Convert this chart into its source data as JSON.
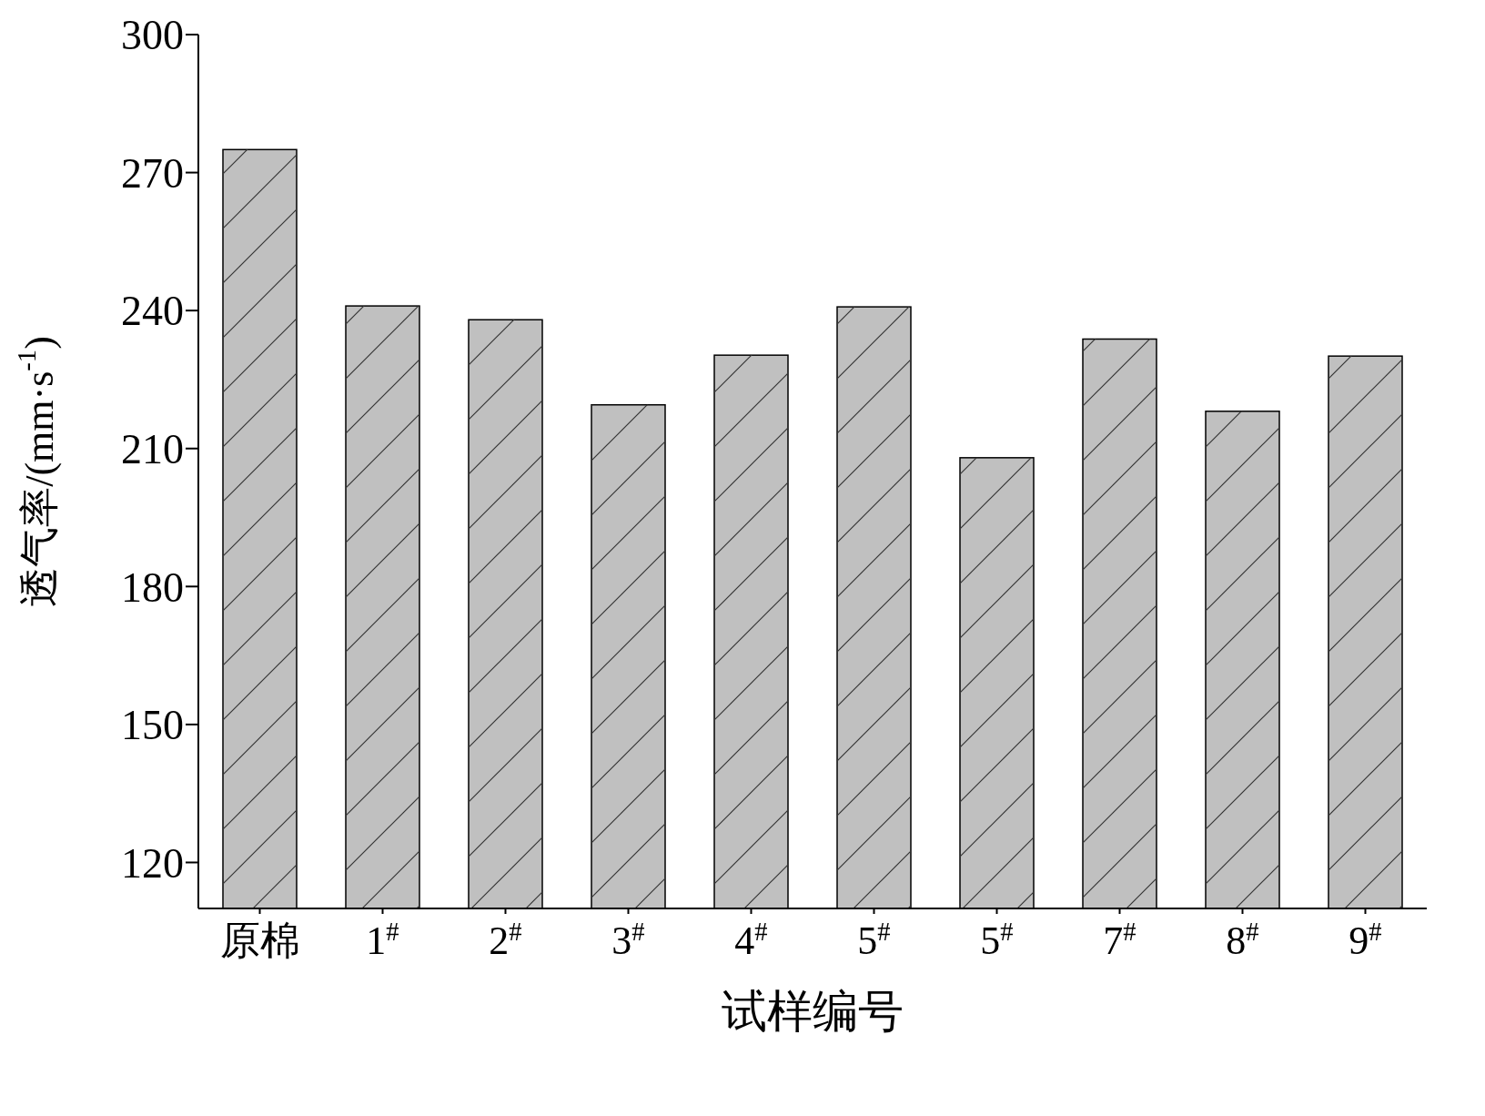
{
  "chart_data": {
    "type": "bar",
    "xlabel": "试样编号",
    "ylabel": "透气率/(mm·s$^{-1}$)",
    "categories": [
      "原棉",
      "1$^{#}$",
      "2$^{#}$",
      "3$^{#}$",
      "4$^{#}$",
      "5$^{#}$",
      "5$^{#}$",
      "7$^{#}$",
      "8$^{#}$",
      "9$^{#}$"
    ],
    "values": [
      275,
      241,
      238,
      219.5,
      230.3,
      240.8,
      208,
      233.8,
      218.1,
      230.1
    ],
    "color": "#c0c0c0",
    "ylim": [
      110,
      300
    ],
    "yticks": [
      120,
      150,
      180,
      210,
      240,
      270,
      300
    ]
  }
}
